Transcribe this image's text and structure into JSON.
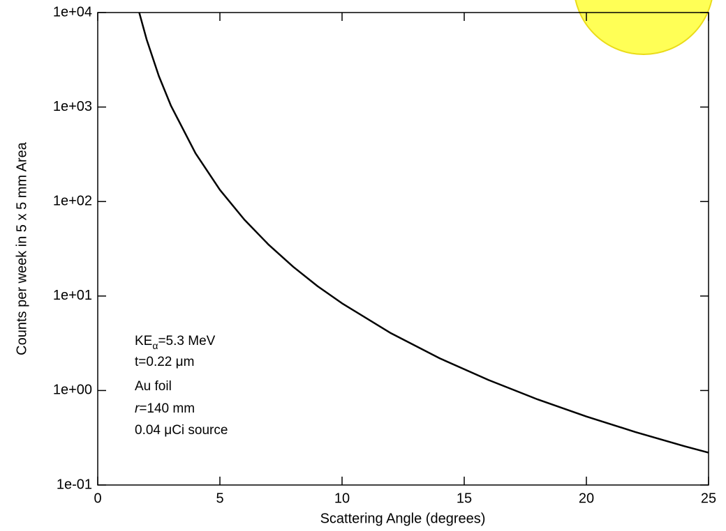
{
  "chart_data": {
    "type": "line",
    "x_label": "Scattering Angle (degrees)",
    "y_label": "Counts per week in 5 x 5 mm Area",
    "x": [
      1.7,
      2,
      2.5,
      3,
      4,
      5,
      6,
      7,
      8,
      9,
      10,
      12,
      14,
      16,
      18,
      20,
      22,
      24,
      25
    ],
    "series": [
      {
        "color": "#000000",
        "values": [
          9968,
          5204,
          2132,
          1028,
          325,
          133,
          64.4,
          34.8,
          20.4,
          12.7,
          8.37,
          4.04,
          2.19,
          1.29,
          0.806,
          0.531,
          0.364,
          0.258,
          0.22
        ]
      }
    ],
    "xlim": [
      0,
      25
    ],
    "xticks": [
      0,
      5,
      10,
      15,
      20,
      25
    ],
    "ylim": [
      0.1,
      10000
    ],
    "log_y": true,
    "yticks": [
      {
        "value": 0.1,
        "label": "1e-01"
      },
      {
        "value": 1,
        "label": "1e+00"
      },
      {
        "value": 10,
        "label": "1e+01"
      },
      {
        "value": 100,
        "label": "1e+02"
      },
      {
        "value": 1000,
        "label": "1e+03"
      },
      {
        "value": 10000,
        "label": "1e+04"
      }
    ],
    "annotation": {
      "line1": {
        "main": "KE",
        "sub": "α",
        "rest": "=5.3 MeV"
      },
      "line2": "t=0.22 μm",
      "line3": "Au foil",
      "line4": {
        "italic": "r",
        "rest": "=140 mm"
      },
      "line5": "0.04 μCi source"
    }
  }
}
